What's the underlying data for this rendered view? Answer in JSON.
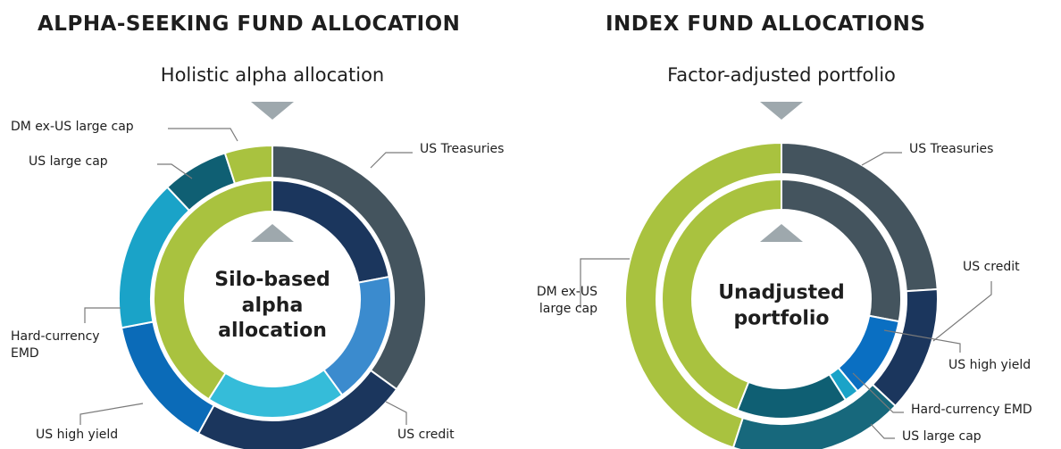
{
  "chart_data": [
    {
      "type": "donut",
      "title": "ALPHA-SEEKING FUND ALLOCATION",
      "subtitle": "Holistic alpha allocation",
      "center_label": "Silo-based alpha allocation",
      "rings": [
        {
          "segments": [
            {
              "name": "US Treasuries",
              "value": 35,
              "color": "#44545e"
            },
            {
              "name": "US credit",
              "value": 23,
              "color": "#1b365d"
            },
            {
              "name": "US high yield",
              "value": 14,
              "color": "#0b6bb8"
            },
            {
              "name": "Hard-currency EMD",
              "value": 16,
              "color": "#1aa3c8"
            },
            {
              "name": "US large cap",
              "value": 7,
              "color": "#0f5f73"
            },
            {
              "name": "DM ex-US large cap",
              "value": 5,
              "color": "#a9c23f"
            }
          ]
        },
        {
          "segments": [
            {
              "value": 22,
              "color": "#1b365d"
            },
            {
              "value": 18,
              "color": "#3b8bce"
            },
            {
              "value": 19,
              "color": "#35bcd9"
            },
            {
              "value": 41,
              "color": "#a9c23f"
            }
          ]
        }
      ]
    },
    {
      "type": "donut",
      "title": "INDEX FUND ALLOCATIONS",
      "subtitle": "Factor-adjusted portfolio",
      "center_label": "Unadjusted portfolio",
      "rings": [
        {
          "segments": [
            {
              "name": "US Treasuries",
              "value": 24,
              "color": "#44545e"
            },
            {
              "name": "US credit",
              "value": 13,
              "color": "#1b365d"
            },
            {
              "name": "US large cap",
              "value": 18,
              "color": "#17687c"
            },
            {
              "name": "DM ex-US large cap",
              "value": 45,
              "color": "#a9c23f"
            }
          ]
        },
        {
          "segments": [
            {
              "value": 28,
              "color": "#44545e"
            },
            {
              "name": "US high yield",
              "value": 11,
              "color": "#0a6fc2"
            },
            {
              "name": "Hard-currency EMD",
              "value": 2,
              "color": "#1aa3c8"
            },
            {
              "value": 15,
              "color": "#0f5f73"
            },
            {
              "value": 44,
              "color": "#a9c23f"
            }
          ]
        }
      ]
    }
  ]
}
